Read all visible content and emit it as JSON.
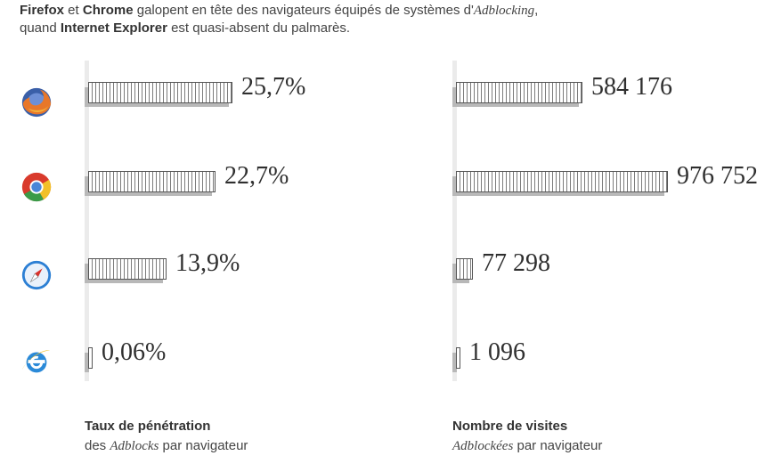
{
  "headline": {
    "b1": "Firefox",
    "t1": " et ",
    "b2": "Chrome",
    "t2": " galopent en tête des navigateurs équipés de systèmes d'",
    "em": "Adblocking",
    "t3": ",",
    "t4": "quand ",
    "b3": "Internet Explorer",
    "t5": " est quasi-absent du palmarès."
  },
  "browsers": [
    {
      "icon": "firefox-icon"
    },
    {
      "icon": "chrome-icon"
    },
    {
      "icon": "safari-icon"
    },
    {
      "icon": "internet-explorer-icon"
    }
  ],
  "chart_data": [
    {
      "type": "bar",
      "orientation": "horizontal",
      "values": [
        25.7,
        22.7,
        13.9,
        0.06
      ],
      "value_labels": [
        "25,7%",
        "22,7%",
        "13,9%",
        "0,06%"
      ],
      "xlim": [
        0,
        100
      ],
      "caption_title": "Taux de pénétration",
      "caption_pre": "des ",
      "caption_em": "Adblocks",
      "caption_post": " par navigateur"
    },
    {
      "type": "bar",
      "orientation": "horizontal",
      "values": [
        584176,
        976752,
        77298,
        1096
      ],
      "value_labels": [
        "584 176",
        "976 752",
        "77 298",
        "1 096"
      ],
      "xlim": [
        0,
        1000000
      ],
      "caption_title": "Nombre de visites",
      "caption_pre": "",
      "caption_em": "Adblockées",
      "caption_post": " par navigateur"
    }
  ]
}
